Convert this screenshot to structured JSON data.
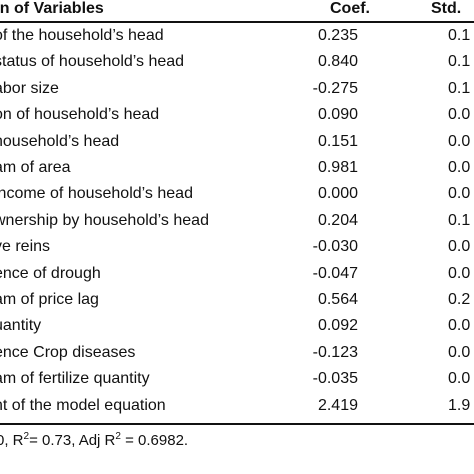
{
  "table": {
    "headers": {
      "variable": "on of Variables",
      "coef": "Coef.",
      "std": "Std."
    },
    "rows": [
      {
        "variable": "of the household’s head",
        "coef": "0.235",
        "std": "0.1"
      },
      {
        "variable": "status of household’s head",
        "coef": "0.840",
        "std": "0.1"
      },
      {
        "variable": "abor size",
        "coef": "-0.275",
        "std": "0.1"
      },
      {
        "variable": "on of household’s head",
        "coef": "0.090",
        "std": "0.0"
      },
      {
        "variable": "household’s head",
        "coef": "0.151",
        "std": "0.0"
      },
      {
        "variable": "am of area",
        "coef": "0.981",
        "std": "0.0"
      },
      {
        "variable": "income of household’s head",
        "coef": "0.000",
        "std": "0.0"
      },
      {
        "variable": "wnership by household’s head",
        "coef": "0.204",
        "std": "0.1"
      },
      {
        "variable": "ve reins",
        "coef": "-0.030",
        "std": "0.0"
      },
      {
        "variable": "ence of drough",
        "coef": "-0.047",
        "std": "0.0"
      },
      {
        "variable": "am of price lag",
        "coef": "0.564",
        "std": "0.2"
      },
      {
        "variable": "uantity",
        "coef": "0.092",
        "std": "0.0"
      },
      {
        "variable": "ence Crop diseases",
        "coef": "-0.123",
        "std": "0.0"
      },
      {
        "variable": "am of fertilize quantity",
        "coef": "-0.035",
        "std": "0.0"
      },
      {
        "variable": "nt of the model equation",
        "coef": "2.419",
        "std": "1.9"
      }
    ]
  },
  "footnote": {
    "prefix": "0, R",
    "r2_exp": "2",
    "r2_value": "= 0.73, Adj R",
    "adj_exp": "2",
    "adj_value": " = 0.6982."
  }
}
